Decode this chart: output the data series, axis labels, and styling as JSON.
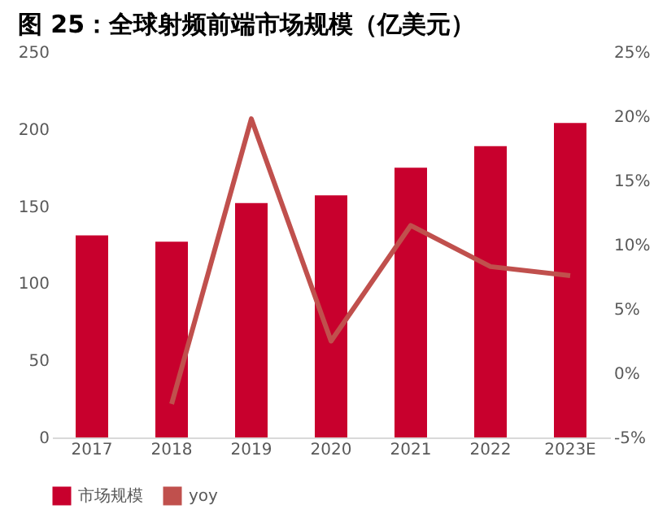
{
  "chart_data": {
    "type": "bar",
    "title": "图 25：全球射频前端市场规模（亿美元）",
    "categories": [
      "2017",
      "2018",
      "2019",
      "2020",
      "2021",
      "2022",
      "2023E"
    ],
    "series": [
      {
        "name": "市场规模",
        "color": "#c8002d",
        "values": [
          131,
          127,
          152,
          157,
          175,
          189,
          204
        ]
      },
      {
        "name": "yoy",
        "type": "line",
        "axis": "y2",
        "color": "#c0504d",
        "values": [
          null,
          -2.4,
          19.8,
          2.5,
          11.5,
          8.3,
          7.6
        ]
      }
    ],
    "ylim": [
      0,
      250
    ],
    "yticks": [
      0,
      50,
      100,
      150,
      200,
      250
    ],
    "y2lim": [
      -5,
      25
    ],
    "y2ticks": [
      {
        "value": -5,
        "label": "-5%"
      },
      {
        "value": 0,
        "label": "0%"
      },
      {
        "value": 5,
        "label": "5%"
      },
      {
        "value": 10,
        "label": "10%"
      },
      {
        "value": 15,
        "label": "15%"
      },
      {
        "value": 20,
        "label": "20%"
      },
      {
        "value": 25,
        "label": "25%"
      }
    ],
    "grid": false,
    "legend": "bottom",
    "marker": "none",
    "line_style": "solid"
  }
}
